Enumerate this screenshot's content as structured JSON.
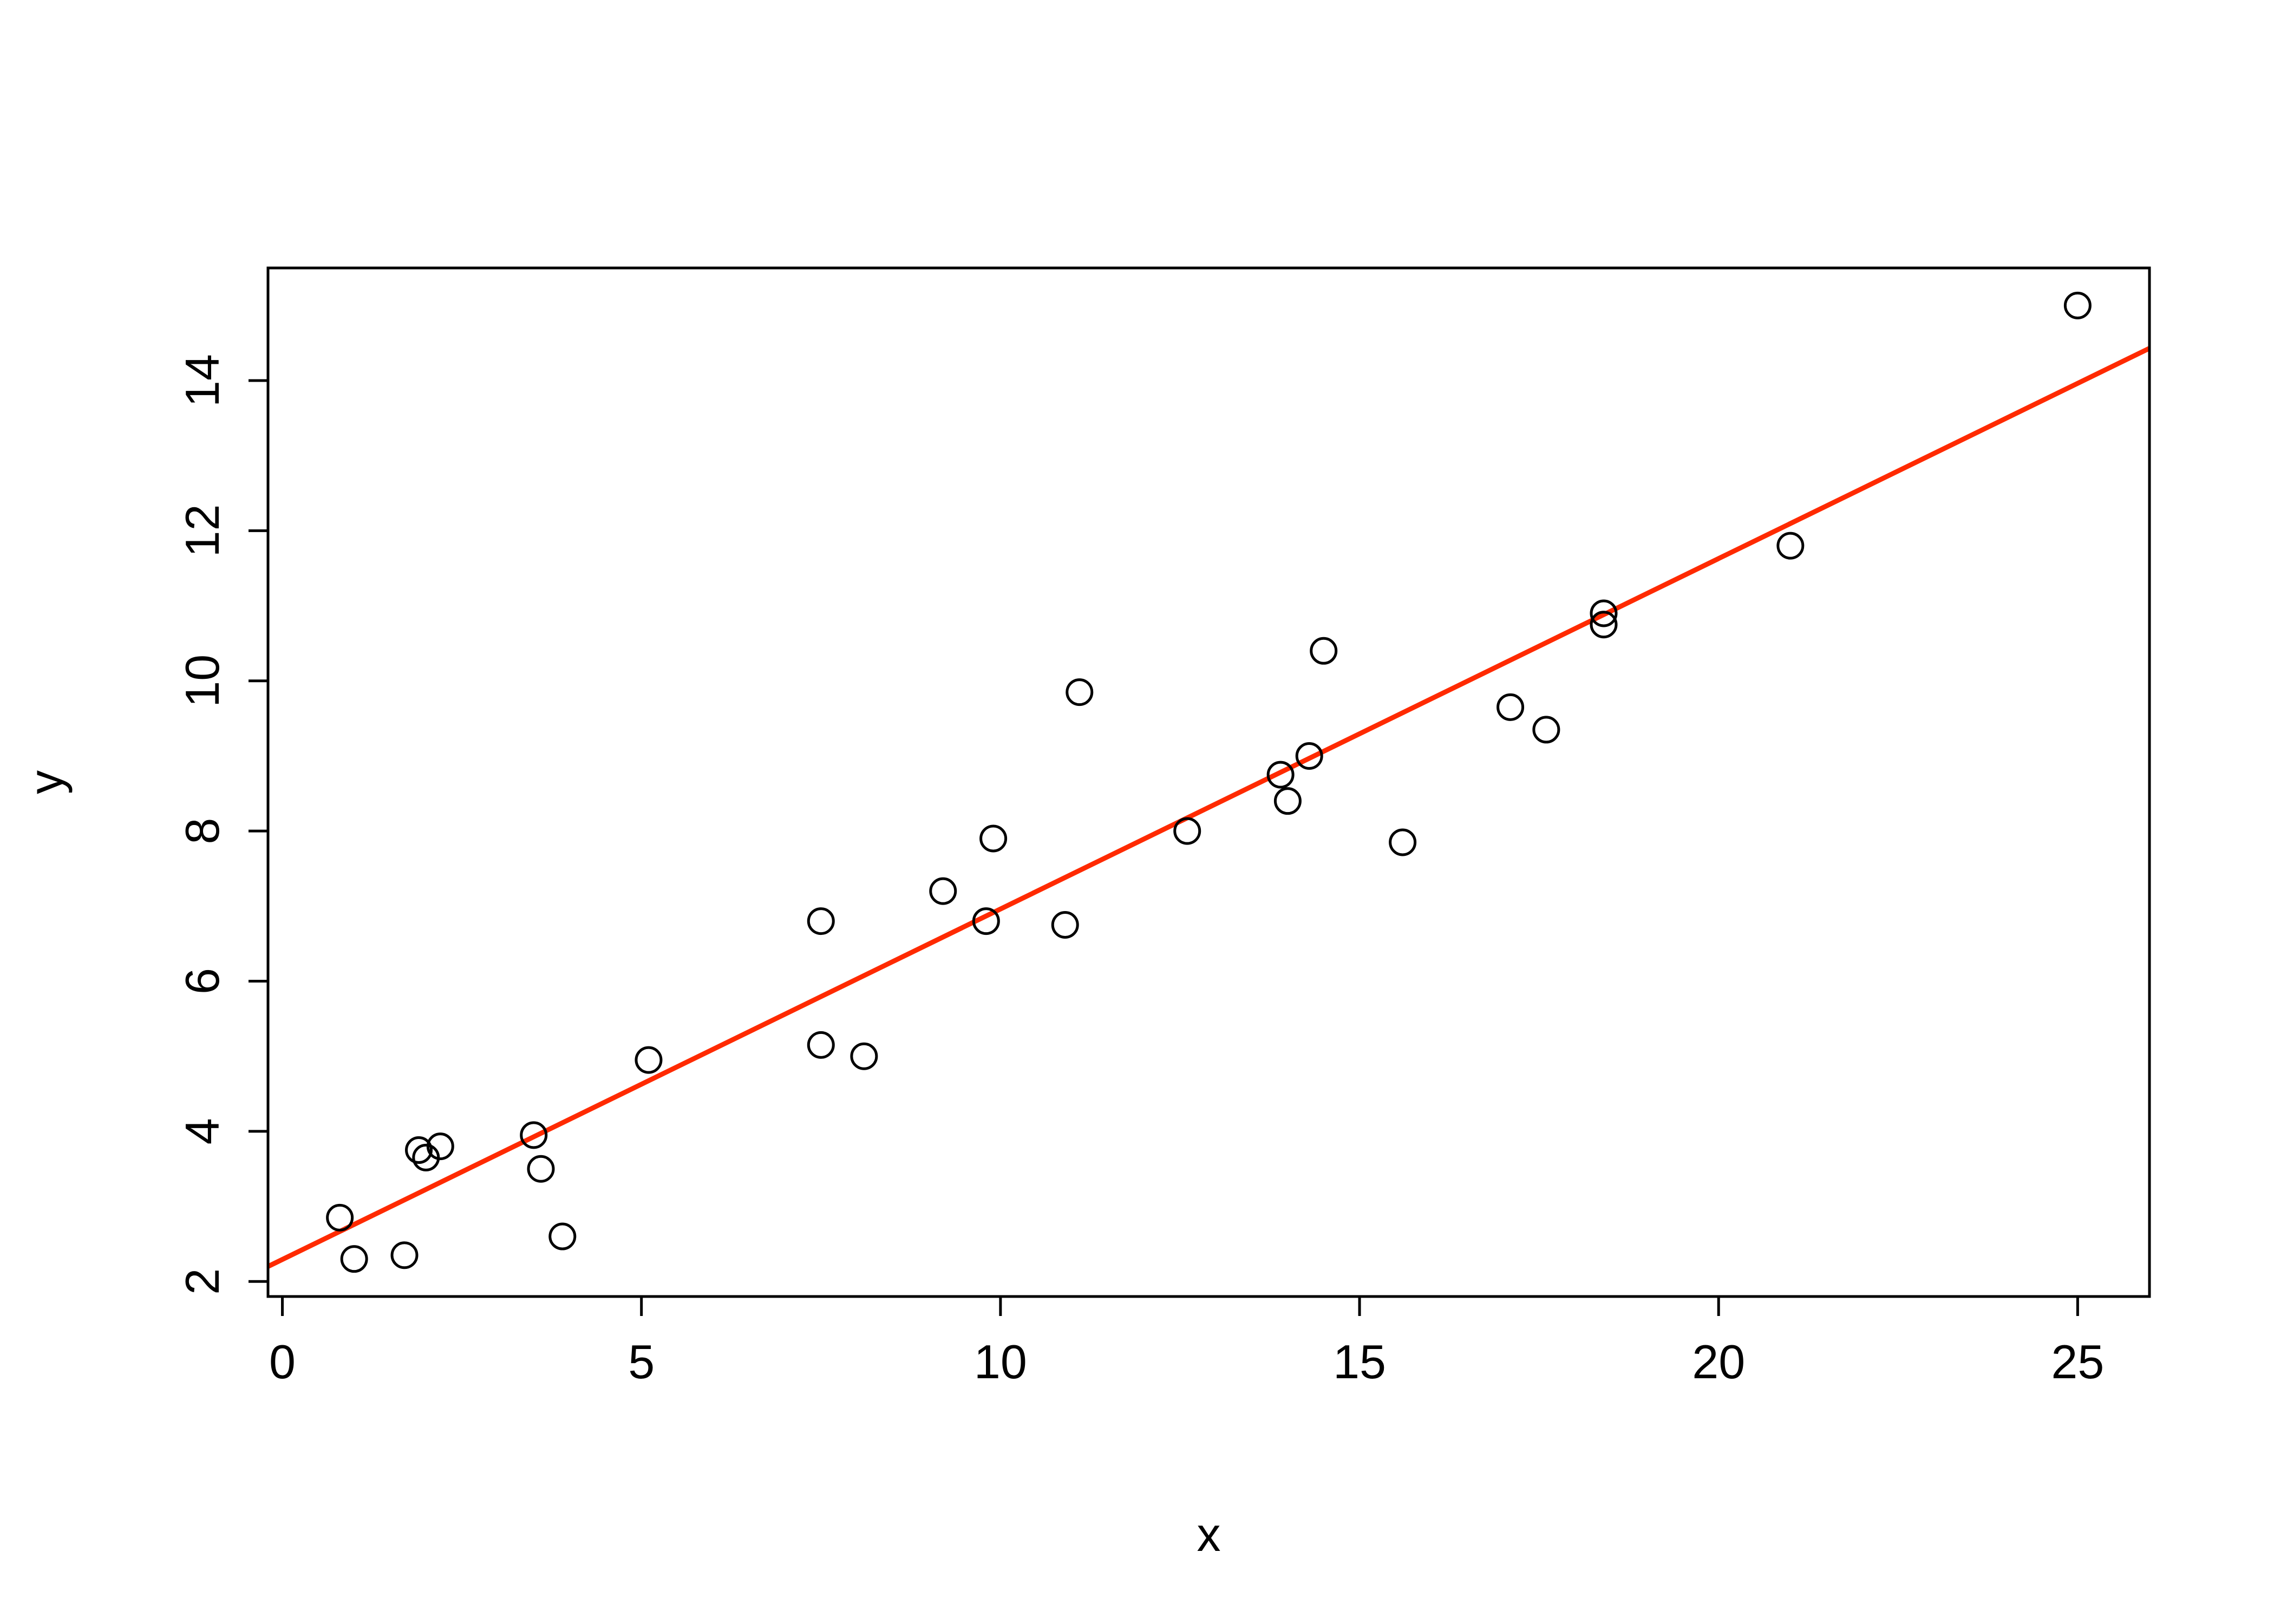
{
  "chart_data": {
    "type": "scatter",
    "title": "",
    "xlabel": "x",
    "ylabel": "y",
    "xlim": [
      -0.2,
      26
    ],
    "ylim": [
      1.8,
      15.5
    ],
    "x_ticks": [
      0,
      5,
      10,
      15,
      20,
      25
    ],
    "y_ticks": [
      2,
      4,
      6,
      8,
      10,
      12,
      14
    ],
    "x_tick_labels": [
      "0",
      "5",
      "10",
      "15",
      "20",
      "25"
    ],
    "y_tick_labels": [
      "2",
      "4",
      "6",
      "8",
      "10",
      "12",
      "14"
    ],
    "grid": false,
    "legend": "none",
    "point_color": "#000000",
    "line_color": "#ff2a00",
    "series": [
      {
        "kind": "points",
        "x": [
          0.8,
          1.0,
          1.7,
          1.9,
          2.0,
          2.2,
          3.5,
          3.6,
          3.9,
          5.1,
          7.5,
          7.5,
          8.1,
          9.2,
          9.8,
          9.9,
          10.9,
          11.1,
          12.6,
          13.9,
          14.0,
          14.3,
          14.5,
          15.6,
          17.1,
          17.6,
          18.4,
          18.4,
          21.0,
          25.0
        ],
        "y": [
          2.85,
          2.3,
          2.35,
          3.75,
          3.65,
          3.8,
          3.95,
          3.5,
          2.6,
          4.95,
          6.8,
          5.15,
          5.0,
          7.2,
          6.8,
          7.9,
          6.75,
          9.85,
          8.0,
          8.75,
          8.4,
          9.0,
          10.4,
          7.85,
          9.65,
          9.35,
          10.75,
          10.9,
          11.8,
          15.0
        ]
      },
      {
        "kind": "fit_line",
        "x": [
          -0.2,
          26
        ],
        "y": [
          2.2,
          14.43
        ]
      }
    ]
  }
}
